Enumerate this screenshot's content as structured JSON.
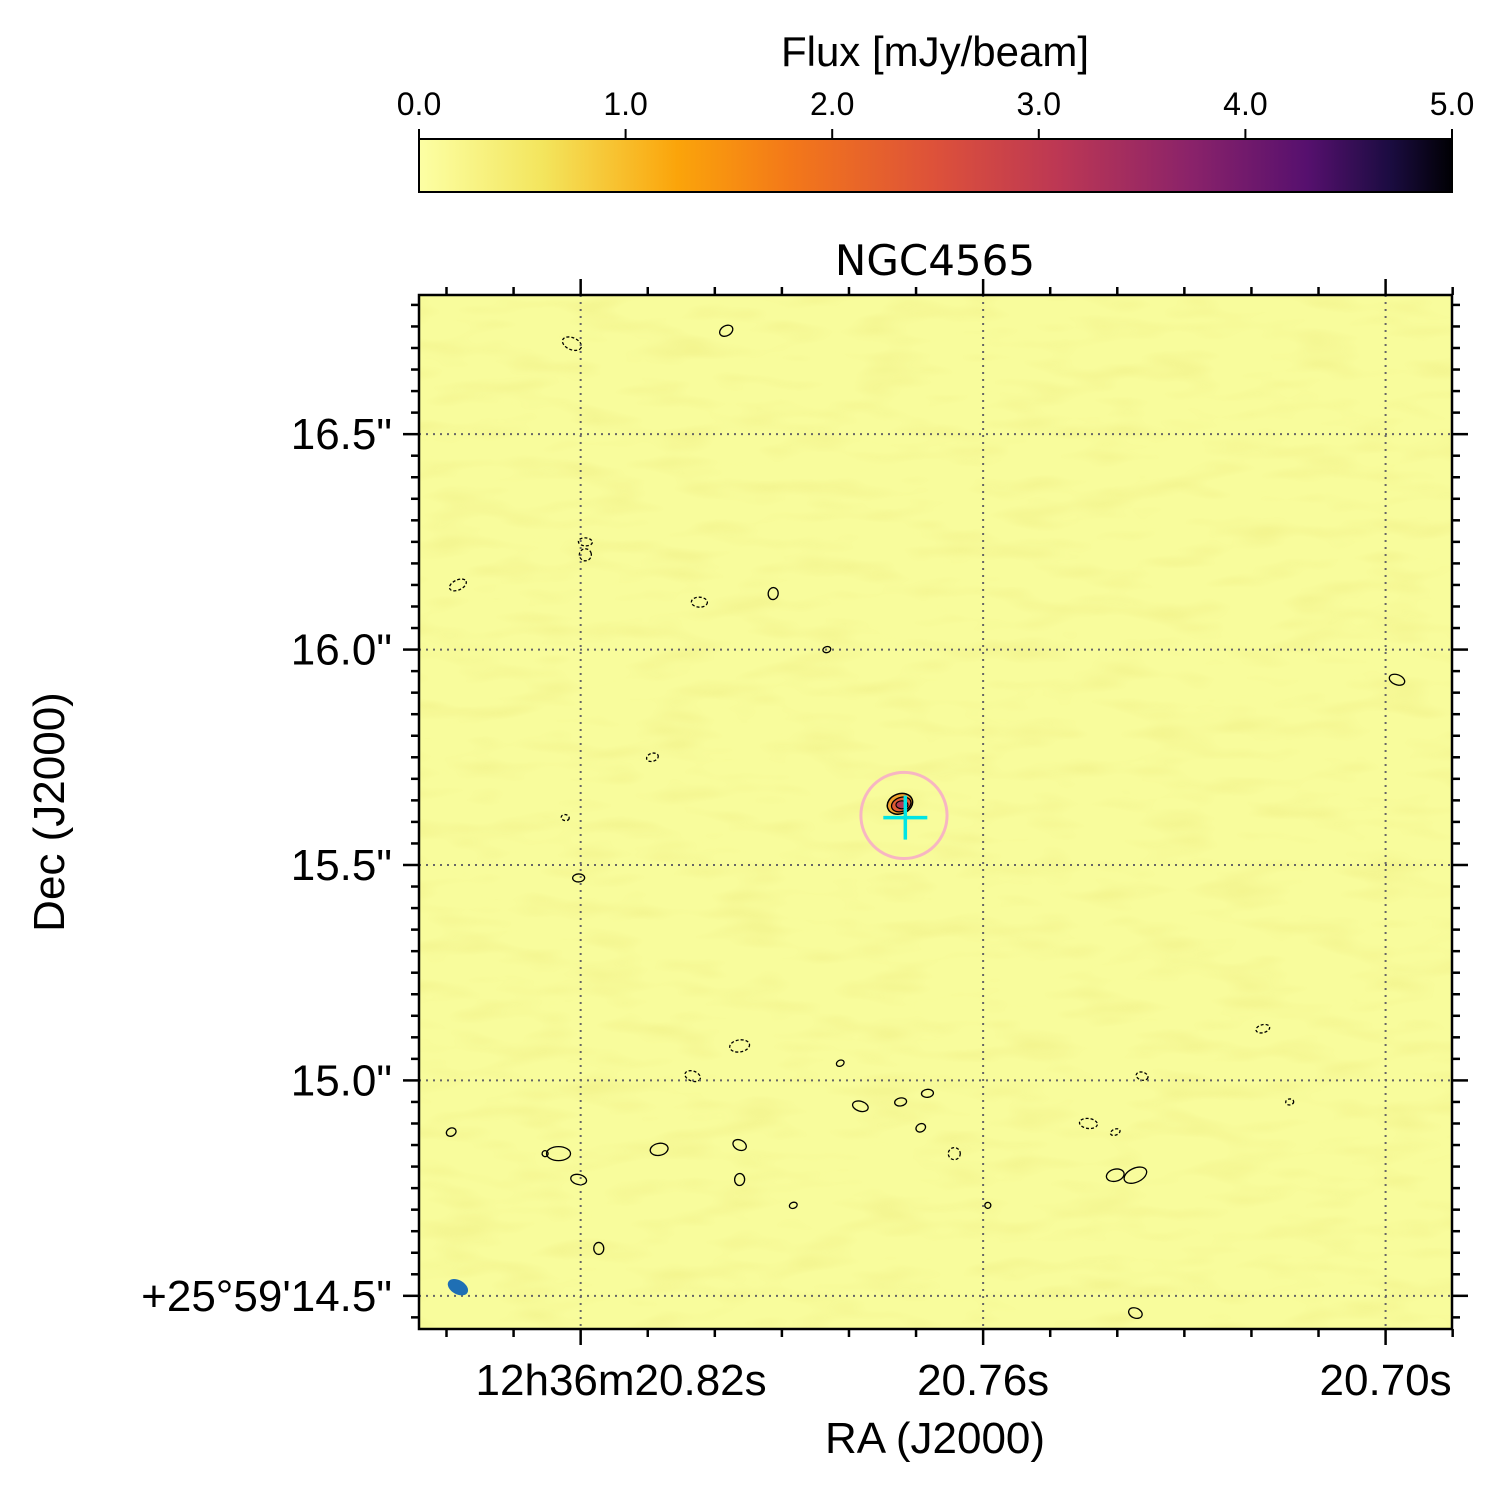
{
  "chart_data": {
    "type": "heatmap",
    "title": "NGC4565",
    "xlabel": "RA (J2000)",
    "ylabel": "Dec (J2000)",
    "colorbar": {
      "label": "Flux [mJy/beam]",
      "range": [
        0.0,
        5.0
      ],
      "ticks": [
        "0.0",
        "1.0",
        "2.0",
        "3.0",
        "4.0",
        "5.0"
      ],
      "colormap": "inferno_r"
    },
    "x_ticks": [
      {
        "label": "12h36m20.82s",
        "value": 20.82
      },
      {
        "label": "20.76s",
        "value": 20.76
      },
      {
        "label": "20.70s",
        "value": 20.7
      }
    ],
    "y_ticks": [
      {
        "label": "+25°59'14.5\"",
        "value": 14.5
      },
      {
        "label": "15.0\"",
        "value": 15.0
      },
      {
        "label": "15.5\"",
        "value": 15.5
      },
      {
        "label": "16.0\"",
        "value": 16.0
      },
      {
        "label": "16.5\"",
        "value": 16.5
      }
    ],
    "xlim": [
      20.8441,
      20.6901
    ],
    "ylim": [
      14.423,
      16.823
    ],
    "grid": true,
    "source": {
      "ra": 20.7724,
      "dec": 15.642,
      "peak_flux": 2.5
    },
    "marker_cross": {
      "ra": 20.7716,
      "dec": 15.61
    },
    "marker_circle": {
      "ra": 20.7718,
      "dec": 15.615,
      "radius_arcsec": 0.1
    },
    "beam": {
      "ra": 20.8383,
      "dec": 14.52
    },
    "contours_solid": [
      [
        20.7983,
        16.74
      ],
      [
        20.7913,
        16.13
      ],
      [
        20.7833,
        16.0
      ],
      [
        20.6983,
        15.93
      ],
      [
        20.8203,
        15.47
      ],
      [
        20.8393,
        14.88
      ],
      [
        20.8253,
        14.83
      ],
      [
        20.8083,
        14.84
      ],
      [
        20.7963,
        14.85
      ],
      [
        20.7963,
        14.77
      ],
      [
        20.7883,
        14.71
      ],
      [
        20.7783,
        14.94
      ],
      [
        20.7683,
        14.97
      ],
      [
        20.7693,
        14.89
      ],
      [
        20.7593,
        14.71
      ],
      [
        20.7403,
        14.78
      ],
      [
        20.7373,
        14.46
      ],
      [
        20.8173,
        14.61
      ],
      [
        20.7813,
        15.04
      ],
      [
        20.8203,
        14.77
      ],
      [
        20.7723,
        14.95
      ]
    ],
    "contours_dashed": [
      [
        20.8383,
        16.15
      ],
      [
        20.8193,
        16.25
      ],
      [
        20.8093,
        15.75
      ],
      [
        20.8223,
        15.61
      ],
      [
        20.7963,
        15.08
      ],
      [
        20.8033,
        15.01
      ],
      [
        20.7643,
        14.83
      ],
      [
        20.7403,
        14.88
      ],
      [
        20.7443,
        14.9
      ],
      [
        20.7183,
        15.12
      ],
      [
        20.7363,
        15.01
      ],
      [
        20.7143,
        14.95
      ],
      [
        20.8213,
        16.71
      ],
      [
        20.8023,
        16.11
      ],
      [
        20.8193,
        16.22
      ]
    ]
  }
}
